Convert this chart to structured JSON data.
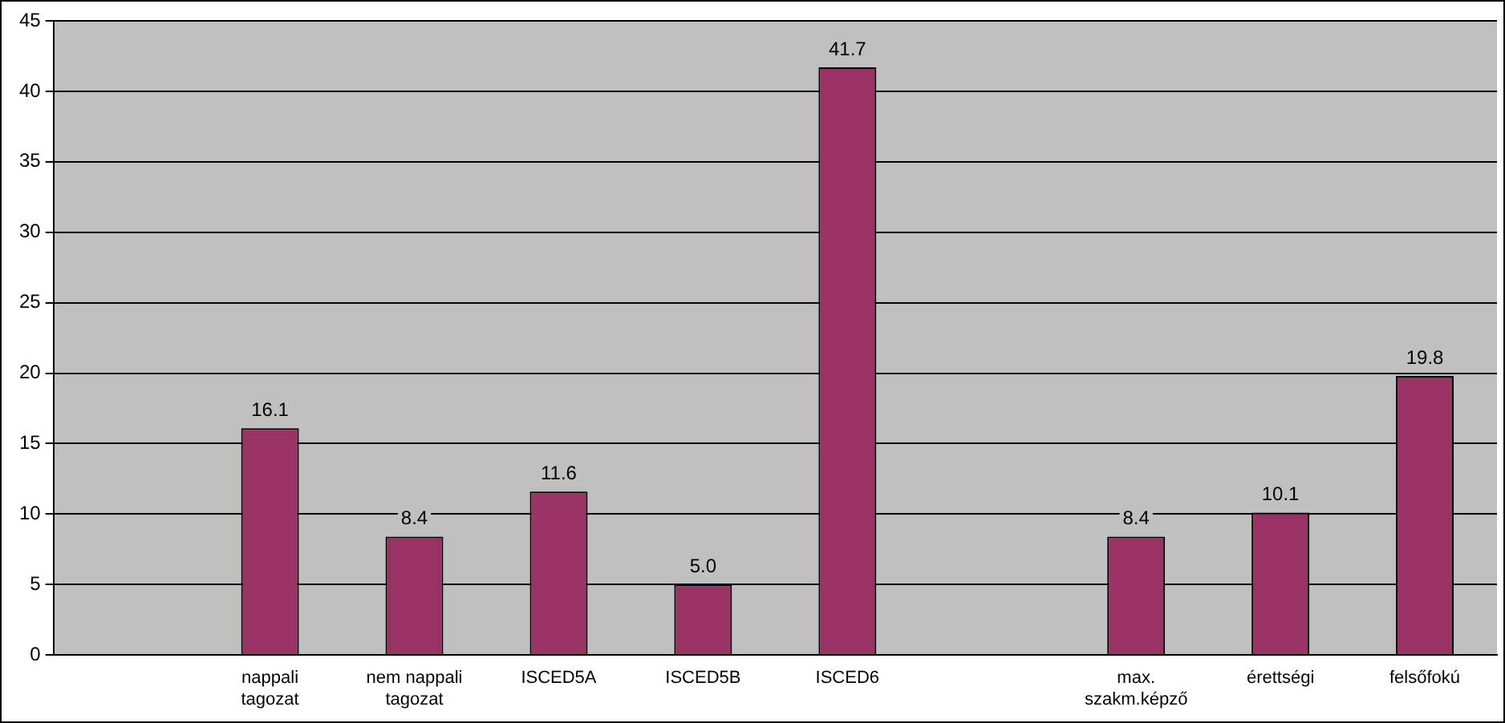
{
  "chart_data": {
    "type": "bar",
    "categories": [
      null,
      "nappali tagozat",
      "nem nappali tagozat",
      "ISCED5A",
      "ISCED5B",
      "ISCED6",
      null,
      "max. szakm.képző",
      "érettségi",
      "felsőfokú"
    ],
    "values": [
      null,
      16.1,
      8.4,
      11.6,
      5.0,
      41.7,
      null,
      8.4,
      10.1,
      19.8
    ],
    "value_labels": [
      null,
      "16.1",
      "8.4",
      "11.6",
      "5.0",
      "41.7",
      null,
      "8.4",
      "10.1",
      "19.8"
    ],
    "color": "#993366",
    "ylim": [
      0,
      45
    ],
    "yticks": [
      0,
      5,
      10,
      15,
      20,
      25,
      30,
      35,
      40,
      45
    ],
    "grid": "y",
    "legend": false
  }
}
